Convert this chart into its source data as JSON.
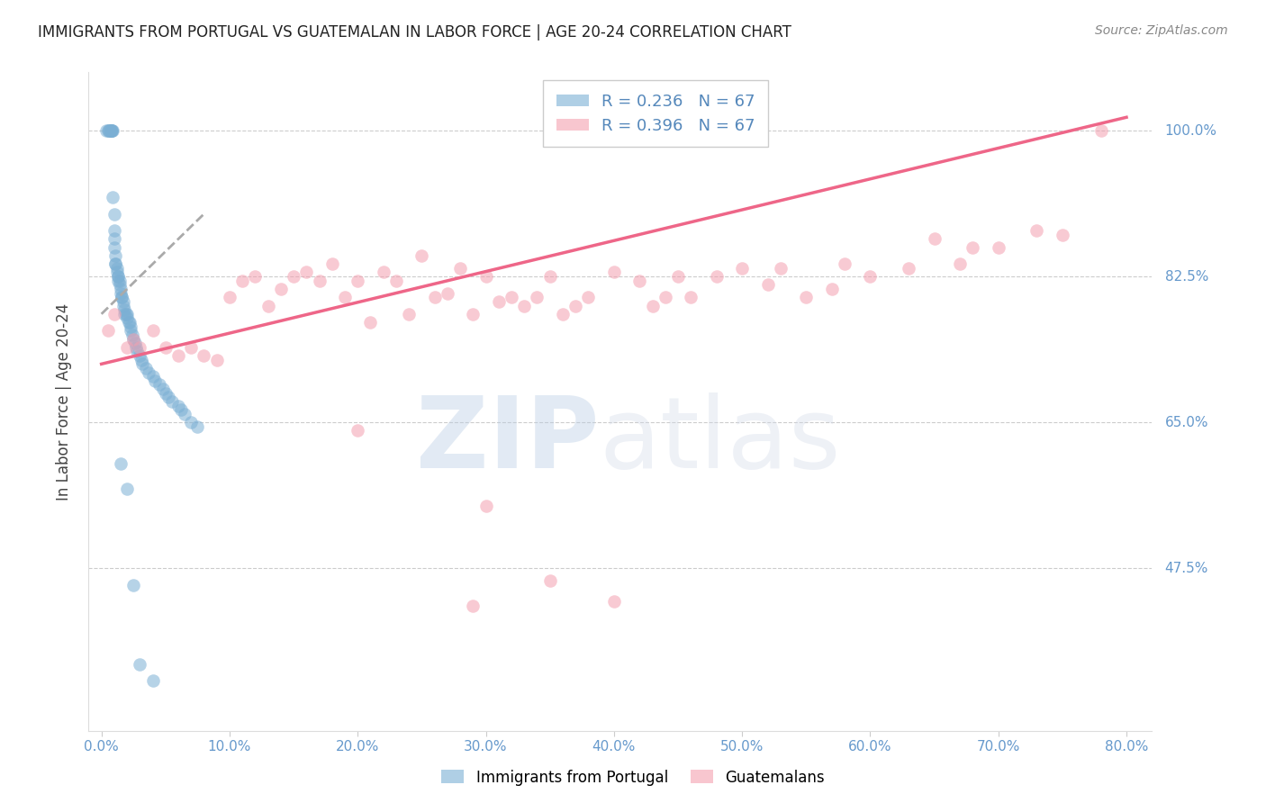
{
  "title": "IMMIGRANTS FROM PORTUGAL VS GUATEMALAN IN LABOR FORCE | AGE 20-24 CORRELATION CHART",
  "source": "Source: ZipAtlas.com",
  "ylabel": "In Labor Force | Age 20-24",
  "xlim": [
    0,
    80
  ],
  "ylim": [
    28,
    107
  ],
  "xlabel_vals": [
    0.0,
    10.0,
    20.0,
    30.0,
    40.0,
    50.0,
    60.0,
    70.0,
    80.0
  ],
  "ylabel_ticks": [
    47.5,
    65.0,
    82.5,
    100.0
  ],
  "ylabel_tick_labels": [
    "47.5%",
    "65.0%",
    "82.5%",
    "100.0%"
  ],
  "blue_color": "#7BAFD4",
  "pink_color": "#F4A0B0",
  "blue_line_color": "#5588BB",
  "pink_line_color": "#EE6688",
  "blue_R": 0.236,
  "blue_N": 67,
  "pink_R": 0.396,
  "pink_N": 67,
  "blue_scatter_x": [
    0.4,
    0.5,
    0.6,
    0.6,
    0.7,
    0.7,
    0.8,
    0.8,
    0.8,
    0.9,
    0.9,
    1.0,
    1.0,
    1.0,
    1.0,
    1.1,
    1.1,
    1.1,
    1.2,
    1.2,
    1.3,
    1.3,
    1.3,
    1.4,
    1.4,
    1.5,
    1.5,
    1.6,
    1.6,
    1.7,
    1.7,
    1.8,
    1.8,
    1.9,
    2.0,
    2.0,
    2.1,
    2.2,
    2.3,
    2.3,
    2.4,
    2.5,
    2.6,
    2.7,
    2.8,
    3.0,
    3.1,
    3.2,
    3.5,
    3.7,
    4.0,
    4.2,
    4.5,
    4.8,
    5.0,
    5.2,
    5.5,
    6.0,
    6.2,
    6.5,
    7.0,
    7.5,
    1.5,
    2.0,
    2.5,
    3.0,
    4.0
  ],
  "blue_scatter_y": [
    100.0,
    100.0,
    100.0,
    100.0,
    100.0,
    100.0,
    100.0,
    100.0,
    100.0,
    100.0,
    92.0,
    90.0,
    88.0,
    87.0,
    86.0,
    85.0,
    84.0,
    84.0,
    83.5,
    83.0,
    82.5,
    82.5,
    82.0,
    82.0,
    81.5,
    81.0,
    80.5,
    80.0,
    80.0,
    79.5,
    79.0,
    78.5,
    78.0,
    78.0,
    78.0,
    77.5,
    77.0,
    77.0,
    76.5,
    76.0,
    75.5,
    75.0,
    74.5,
    74.0,
    73.5,
    73.0,
    72.5,
    72.0,
    71.5,
    71.0,
    70.5,
    70.0,
    69.5,
    69.0,
    68.5,
    68.0,
    67.5,
    67.0,
    66.5,
    66.0,
    65.0,
    64.5,
    60.0,
    57.0,
    45.5,
    36.0,
    34.0
  ],
  "pink_scatter_x": [
    0.5,
    1.0,
    2.0,
    2.5,
    3.0,
    4.0,
    5.0,
    6.0,
    7.0,
    8.0,
    9.0,
    10.0,
    11.0,
    12.0,
    13.0,
    14.0,
    15.0,
    16.0,
    17.0,
    18.0,
    19.0,
    20.0,
    21.0,
    22.0,
    23.0,
    24.0,
    25.0,
    26.0,
    27.0,
    28.0,
    29.0,
    30.0,
    31.0,
    32.0,
    33.0,
    34.0,
    35.0,
    36.0,
    37.0,
    38.0,
    40.0,
    42.0,
    43.0,
    44.0,
    45.0,
    46.0,
    48.0,
    50.0,
    52.0,
    53.0,
    55.0,
    57.0,
    58.0,
    60.0,
    63.0,
    65.0,
    67.0,
    68.0,
    70.0,
    73.0,
    75.0,
    78.0,
    30.0,
    20.0,
    35.0,
    29.0,
    40.0
  ],
  "pink_scatter_y": [
    76.0,
    78.0,
    74.0,
    75.0,
    74.0,
    76.0,
    74.0,
    73.0,
    74.0,
    73.0,
    72.5,
    80.0,
    82.0,
    82.5,
    79.0,
    81.0,
    82.5,
    83.0,
    82.0,
    84.0,
    80.0,
    82.0,
    77.0,
    83.0,
    82.0,
    78.0,
    85.0,
    80.0,
    80.5,
    83.5,
    78.0,
    82.5,
    79.5,
    80.0,
    79.0,
    80.0,
    82.5,
    78.0,
    79.0,
    80.0,
    83.0,
    82.0,
    79.0,
    80.0,
    82.5,
    80.0,
    82.5,
    83.5,
    81.5,
    83.5,
    80.0,
    81.0,
    84.0,
    82.5,
    83.5,
    87.0,
    84.0,
    86.0,
    86.0,
    88.0,
    87.5,
    100.0,
    55.0,
    64.0,
    46.0,
    43.0,
    43.5
  ],
  "blue_trend_x": [
    0,
    8
  ],
  "blue_trend_y_intercept": 78.0,
  "blue_trend_slope": 1.5,
  "pink_trend_x": [
    0,
    80
  ],
  "pink_trend_y_intercept": 72.0,
  "pink_trend_slope": 0.37
}
